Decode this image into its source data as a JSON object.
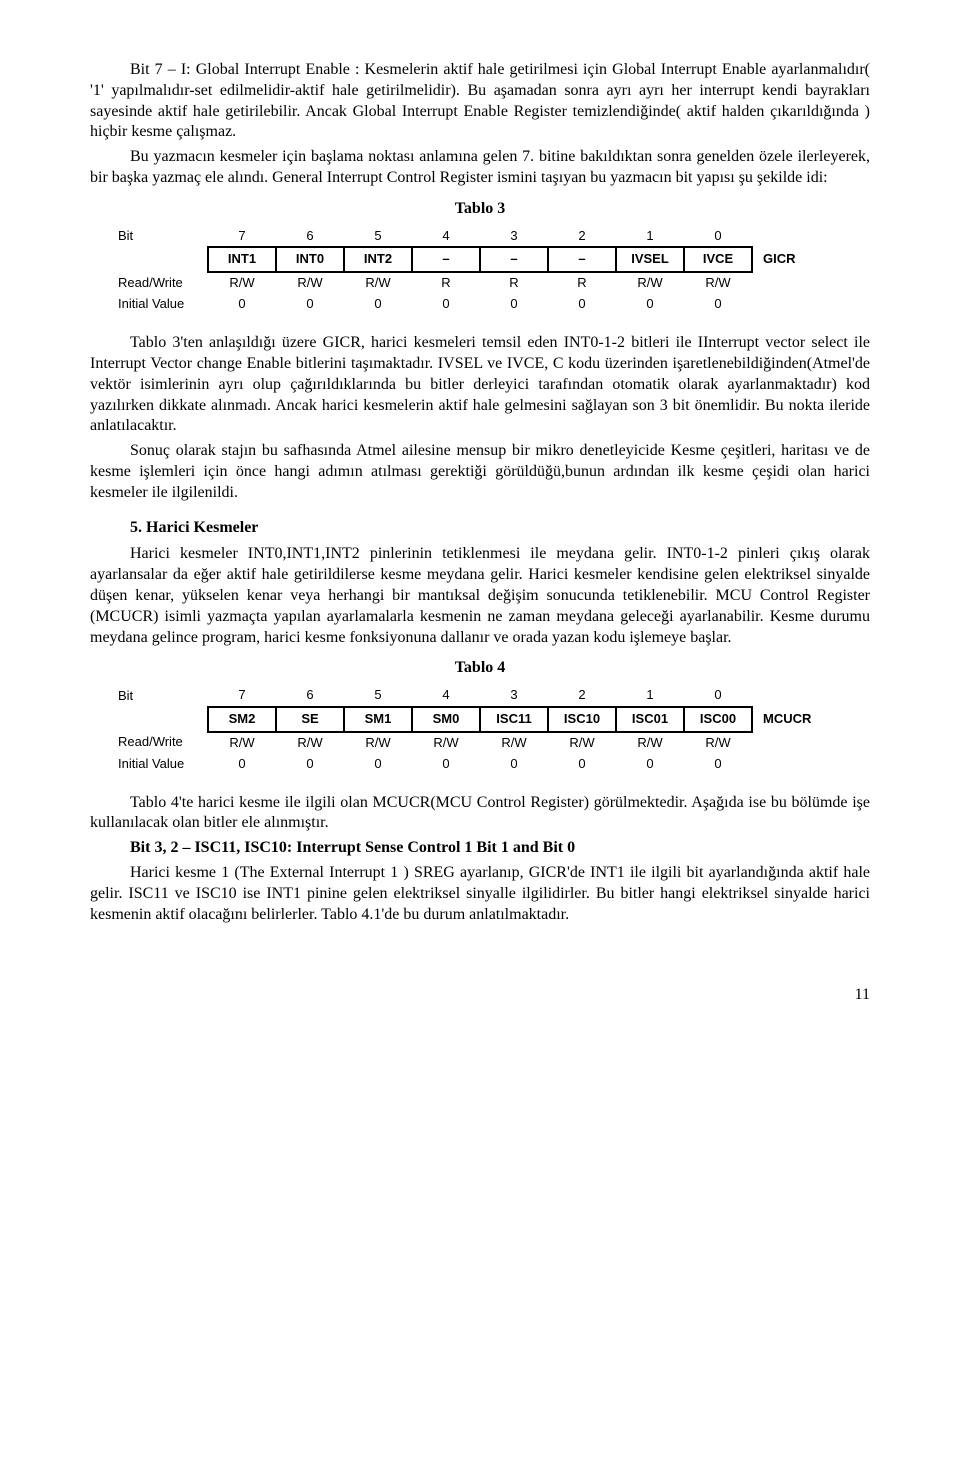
{
  "para1": "Bit 7 – I: Global Interrupt Enable : Kesmelerin aktif hale getirilmesi için Global Interrupt Enable ayarlanmalıdır( '1' yapılmalıdır-set edilmelidir-aktif hale getirilmelidir). Bu aşamadan sonra ayrı ayrı her interrupt kendi bayrakları sayesinde aktif hale getirilebilir. Ancak Global Interrupt Enable Register temizlendiğinde( aktif halden çıkarıldığında ) hiçbir kesme çalışmaz.",
  "para2": "Bu yazmacın kesmeler için başlama noktası anlamına gelen 7. bitine bakıldıktan sonra genelden özele ilerleyerek, bir başka yazmaç ele alındı. General Interrupt Control Register ismini taşıyan bu yazmacın bit yapısı şu şekilde idi:",
  "tablo3_caption": "Tablo 3",
  "tablo3": {
    "row_bit_label": "Bit",
    "bit_nums": [
      "7",
      "6",
      "5",
      "4",
      "3",
      "2",
      "1",
      "0"
    ],
    "regname": "GICR",
    "bits": [
      "INT1",
      "INT0",
      "INT2",
      "–",
      "–",
      "–",
      "IVSEL",
      "IVCE"
    ],
    "rw_label": "Read/Write",
    "rw": [
      "R/W",
      "R/W",
      "R/W",
      "R",
      "R",
      "R",
      "R/W",
      "R/W"
    ],
    "iv_label": "Initial Value",
    "iv": [
      "0",
      "0",
      "0",
      "0",
      "0",
      "0",
      "0",
      "0"
    ]
  },
  "para3": "Tablo 3'ten anlaşıldığı üzere GICR, harici kesmeleri temsil eden INT0-1-2 bitleri ile IInterrupt vector select ile Interrupt Vector change Enable bitlerini taşımaktadır. IVSEL ve IVCE, C kodu üzerinden işaretlenebildiğinden(Atmel'de vektör isimlerinin ayrı olup çağırıldıklarında bu bitler derleyici tarafından otomatik olarak ayarlanmaktadır) kod yazılırken dikkate alınmadı. Ancak harici kesmelerin aktif hale gelmesini sağlayan son 3 bit önemlidir. Bu nokta ileride anlatılacaktır.",
  "para4": "Sonuç olarak stajın bu safhasında Atmel ailesine mensup bir mikro denetleyicide Kesme çeşitleri, haritası ve de kesme işlemleri için önce hangi adımın atılması gerektiği görüldüğü,bunun ardından ilk kesme çeşidi olan harici kesmeler ile ilgilenildi.",
  "heading5": "5. Harici Kesmeler",
  "para5": "Harici kesmeler INT0,INT1,INT2 pinlerinin tetiklenmesi ile meydana gelir. INT0-1-2 pinleri çıkış olarak ayarlansalar da eğer aktif hale getirildilerse kesme meydana gelir. Harici kesmeler kendisine gelen elektriksel sinyalde düşen kenar, yükselen kenar veya herhangi bir mantıksal değişim sonucunda tetiklenebilir. MCU Control Register (MCUCR) isimli yazmaçta yapılan ayarlamalarla kesmenin ne zaman meydana geleceği ayarlanabilir. Kesme durumu meydana gelince program, harici kesme fonksiyonuna dallanır ve orada yazan kodu işlemeye başlar.",
  "tablo4_caption": "Tablo 4",
  "tablo4": {
    "row_bit_label": "Bit",
    "bit_nums": [
      "7",
      "6",
      "5",
      "4",
      "3",
      "2",
      "1",
      "0"
    ],
    "regname": "MCUCR",
    "bits": [
      "SM2",
      "SE",
      "SM1",
      "SM0",
      "ISC11",
      "ISC10",
      "ISC01",
      "ISC00"
    ],
    "rw_label": "Read/Write",
    "rw": [
      "R/W",
      "R/W",
      "R/W",
      "R/W",
      "R/W",
      "R/W",
      "R/W",
      "R/W"
    ],
    "iv_label": "Initial Value",
    "iv": [
      "0",
      "0",
      "0",
      "0",
      "0",
      "0",
      "0",
      "0"
    ]
  },
  "para6": "Tablo 4'te harici kesme ile ilgili olan MCUCR(MCU Control Register) görülmektedir. Aşağıda ise bu bölümde işe kullanılacak olan bitler ele alınmıştır.",
  "bit32_heading": "Bit 3, 2 – ISC11, ISC10: Interrupt Sense Control 1 Bit 1 and Bit 0",
  "para7": "Harici kesme 1 (The External Interrupt 1 ) SREG ayarlanıp, GICR'de INT1 ile ilgili bit ayarlandığında aktif hale gelir. ISC11 ve ISC10 ise INT1 pinine gelen elektriksel sinyalle ilgilidirler. Bu bitler hangi elektriksel sinyalde harici kesmenin aktif olacağını belirlerler. Tablo 4.1'de bu durum anlatılmaktadır.",
  "pagenum": "11"
}
